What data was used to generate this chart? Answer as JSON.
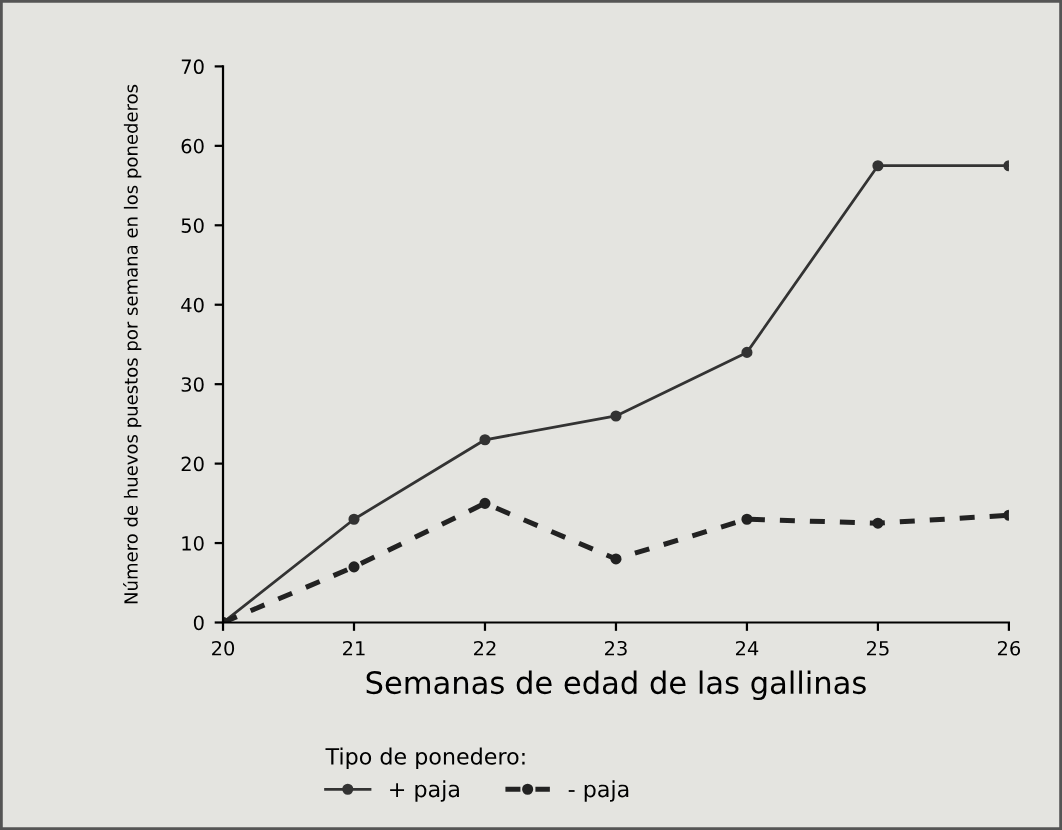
{
  "chart_data": {
    "type": "line",
    "xlabel": "Semanas de edad de las gallinas",
    "ylabel": "Número de huevos puestos por semana en los ponederos",
    "legend_title": "Tipo de ponedero:",
    "x": [
      20,
      21,
      22,
      23,
      24,
      25,
      26
    ],
    "series": [
      {
        "name": "+ paja",
        "color": "#333333",
        "values": [
          0,
          13,
          23,
          26,
          34,
          57.5,
          57.5
        ],
        "line_style": "solid"
      },
      {
        "name": "- paja",
        "color": "#222222",
        "values": [
          0,
          7,
          15,
          8,
          13,
          12.5,
          13.5
        ],
        "line_style": "dashed"
      }
    ],
    "xlim": [
      20,
      26
    ],
    "xticks": [
      20,
      21,
      22,
      23,
      24,
      25,
      26
    ],
    "ylim": [
      0,
      70
    ],
    "yticks": [
      0,
      10,
      20,
      30,
      40,
      50,
      60,
      70
    ],
    "grid": false,
    "legend": "bottom",
    "marker": "circle"
  }
}
